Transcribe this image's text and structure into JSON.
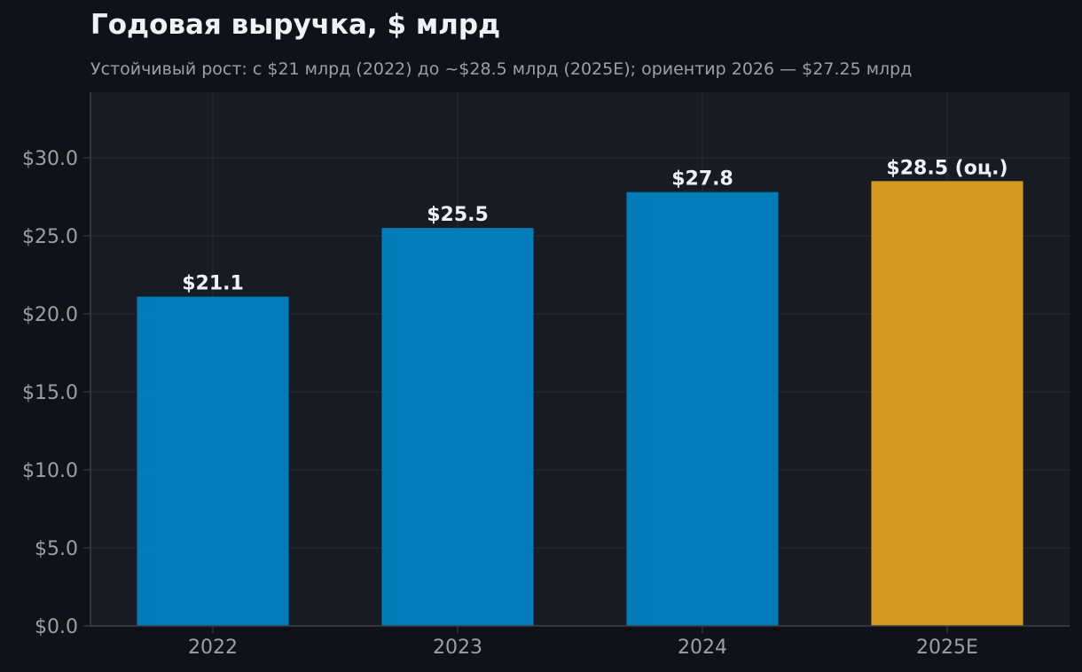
{
  "chart_data": {
    "type": "bar",
    "title": "Годовая выручка, $ млрд",
    "subtitle": "Устойчивый рост: с $21 млрд (2022) до ~$28.5 млрд (2025E); ориентир 2026 — $27.25 млрд",
    "xlabel": "",
    "ylabel": "",
    "categories": [
      "2022",
      "2023",
      "2024",
      "2025E"
    ],
    "values": [
      21.1,
      25.5,
      27.8,
      28.5
    ],
    "data_labels": [
      "$21.1",
      "$25.5",
      "$27.8",
      "$28.5 (оц.)"
    ],
    "estimated": [
      false,
      false,
      false,
      true
    ],
    "ylim": [
      0,
      34.2
    ],
    "yticks": [
      0,
      5,
      10,
      15,
      20,
      25,
      30
    ],
    "ytick_labels": [
      "$0.0",
      "$5.0",
      "$10.0",
      "$15.0",
      "$20.0",
      "$25.0",
      "$30.0"
    ],
    "grid": true,
    "legend": "none"
  },
  "colors": {
    "background": "#0f1216",
    "plot_background": "#181b22",
    "grid": "#262a33",
    "axis": "#3a3f4a",
    "bar_actual": "#007db8",
    "bar_estimate": "#d49a22",
    "title": "#eef1f5",
    "subtitle": "#9aa0a9",
    "tick_text": "#9aa0a9",
    "data_label": "#eef1f5"
  }
}
